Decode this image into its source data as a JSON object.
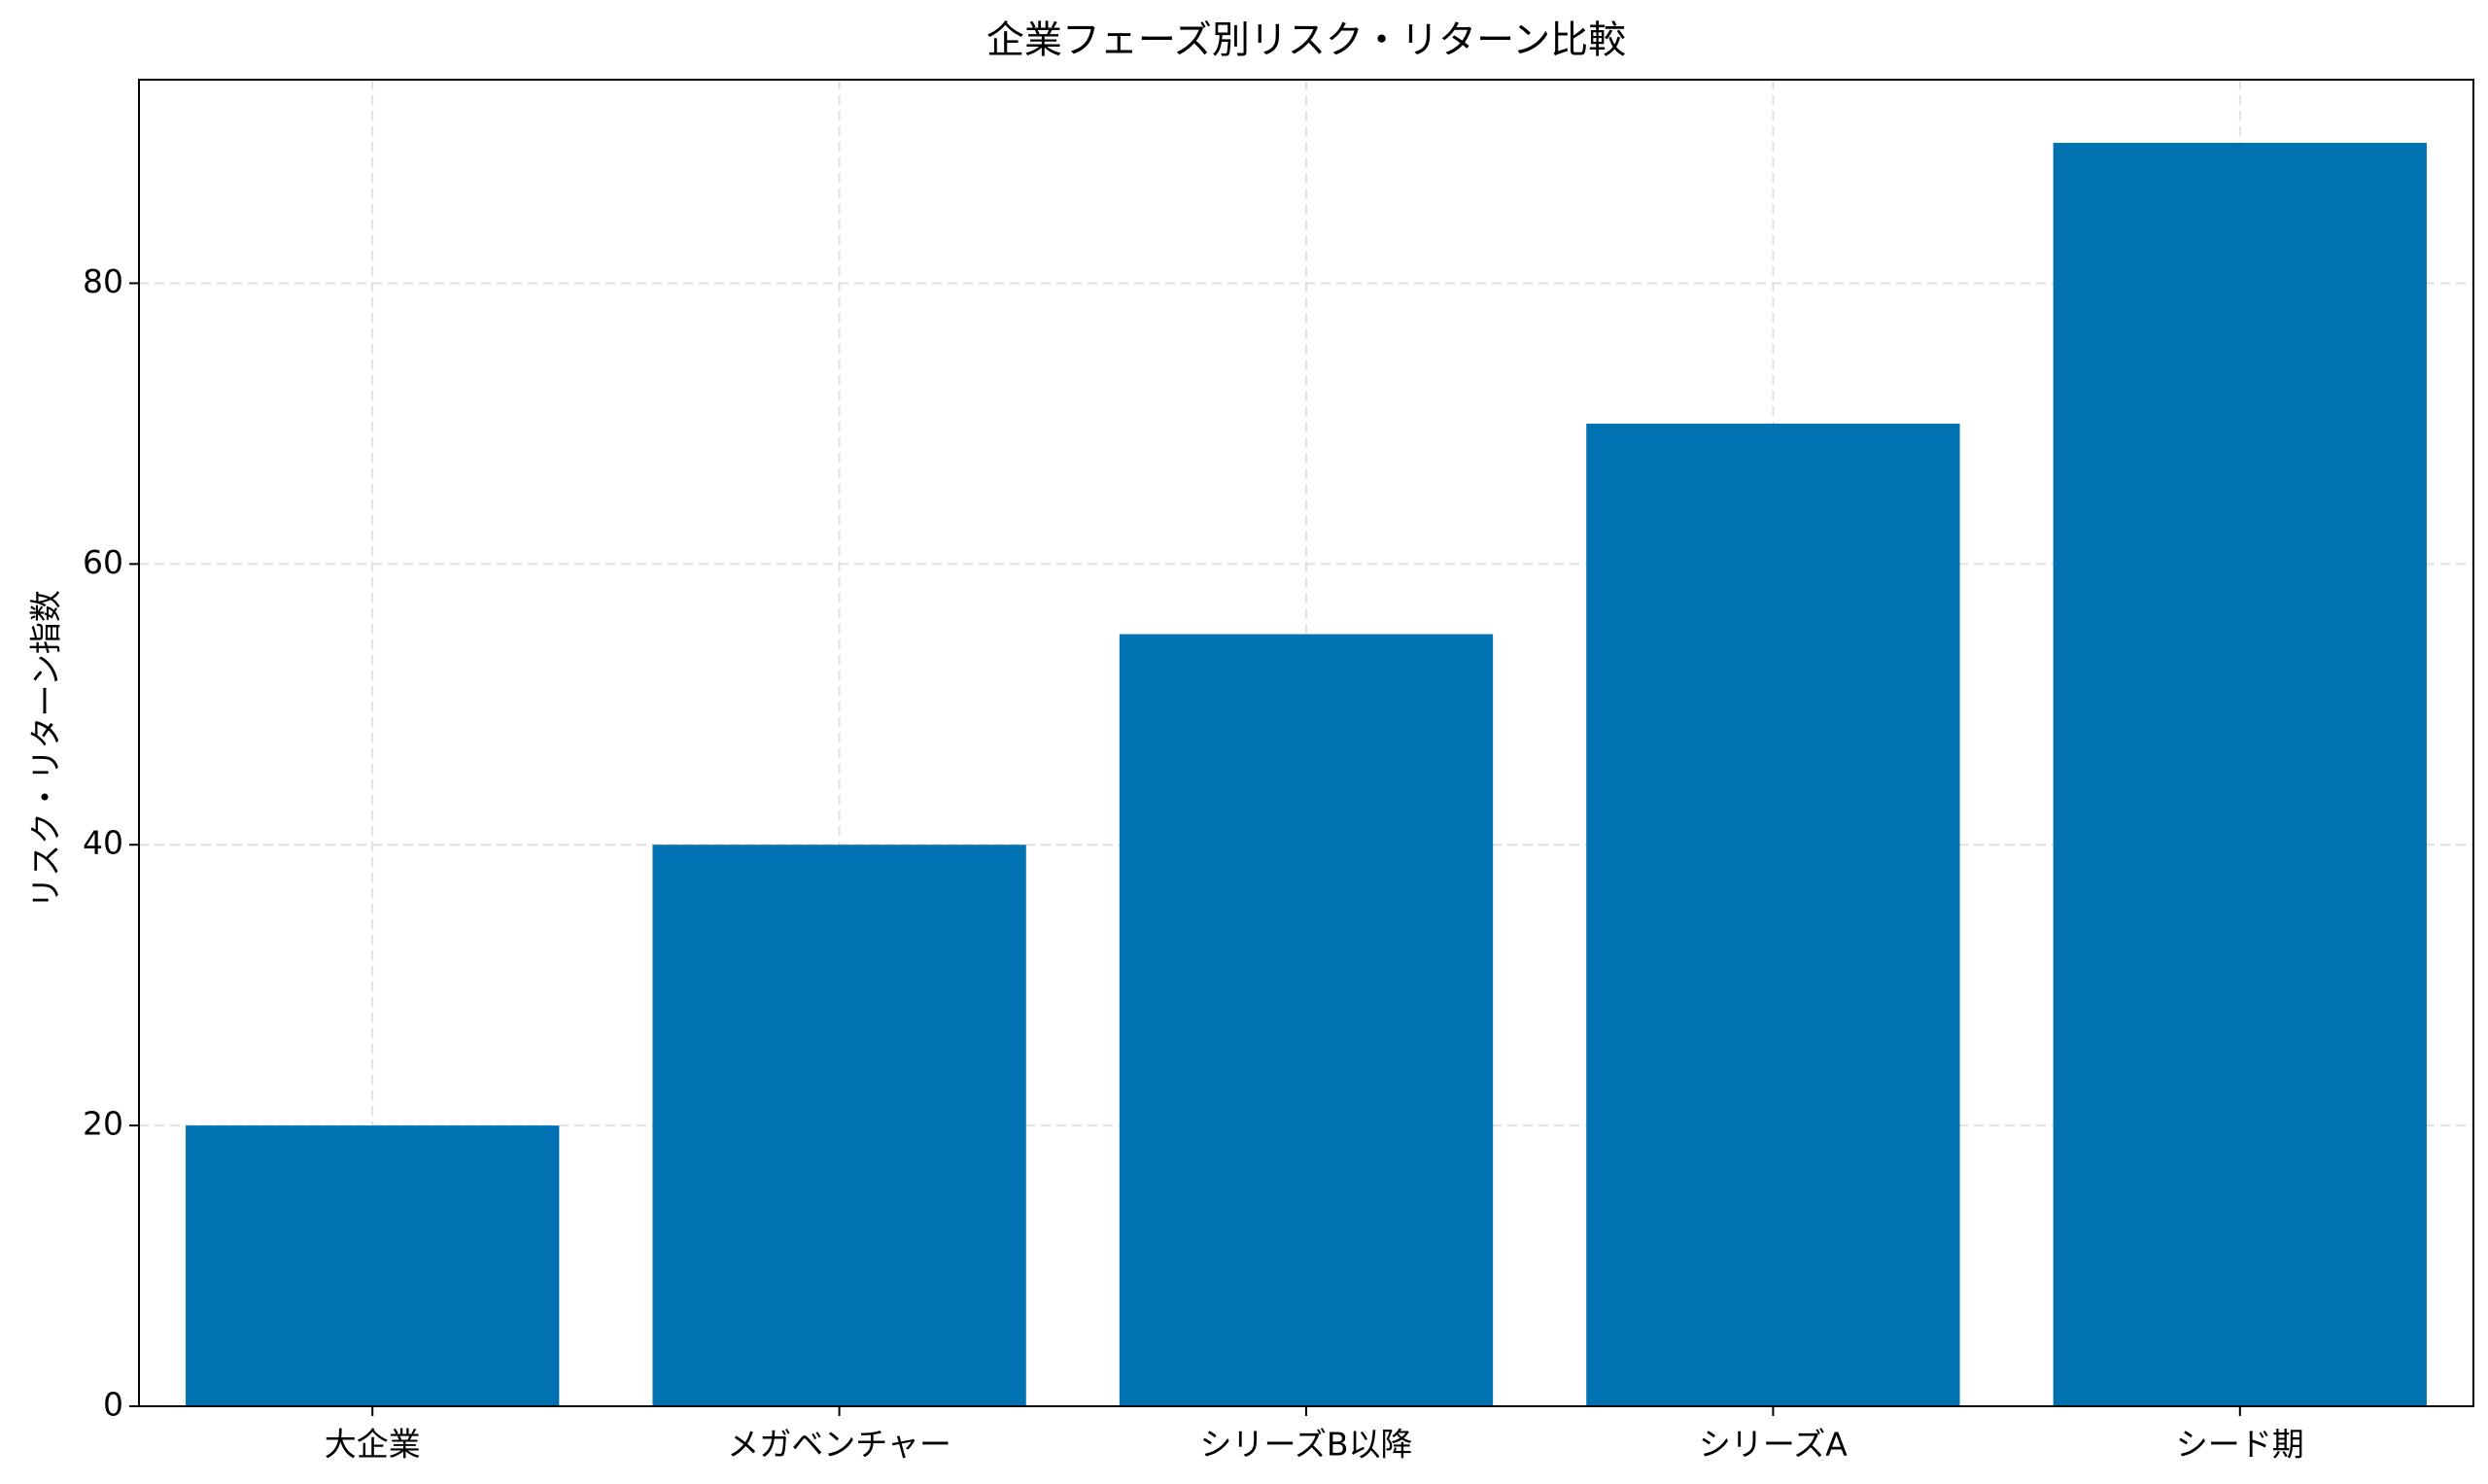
{
  "chart_data": {
    "type": "bar",
    "title": "企業フェーズ別リスク・リターン比較",
    "y_label": "リスク・リターン指数",
    "categories": [
      "大企業",
      "メガベンチャー",
      "シリーズB以降",
      "シリーズA",
      "シード期"
    ],
    "values": [
      20,
      40,
      55,
      70,
      90
    ],
    "color": "#0072b2",
    "ylim": [
      0,
      94.5
    ],
    "yticks": [
      0,
      20,
      40,
      60,
      80
    ],
    "grid": true
  }
}
